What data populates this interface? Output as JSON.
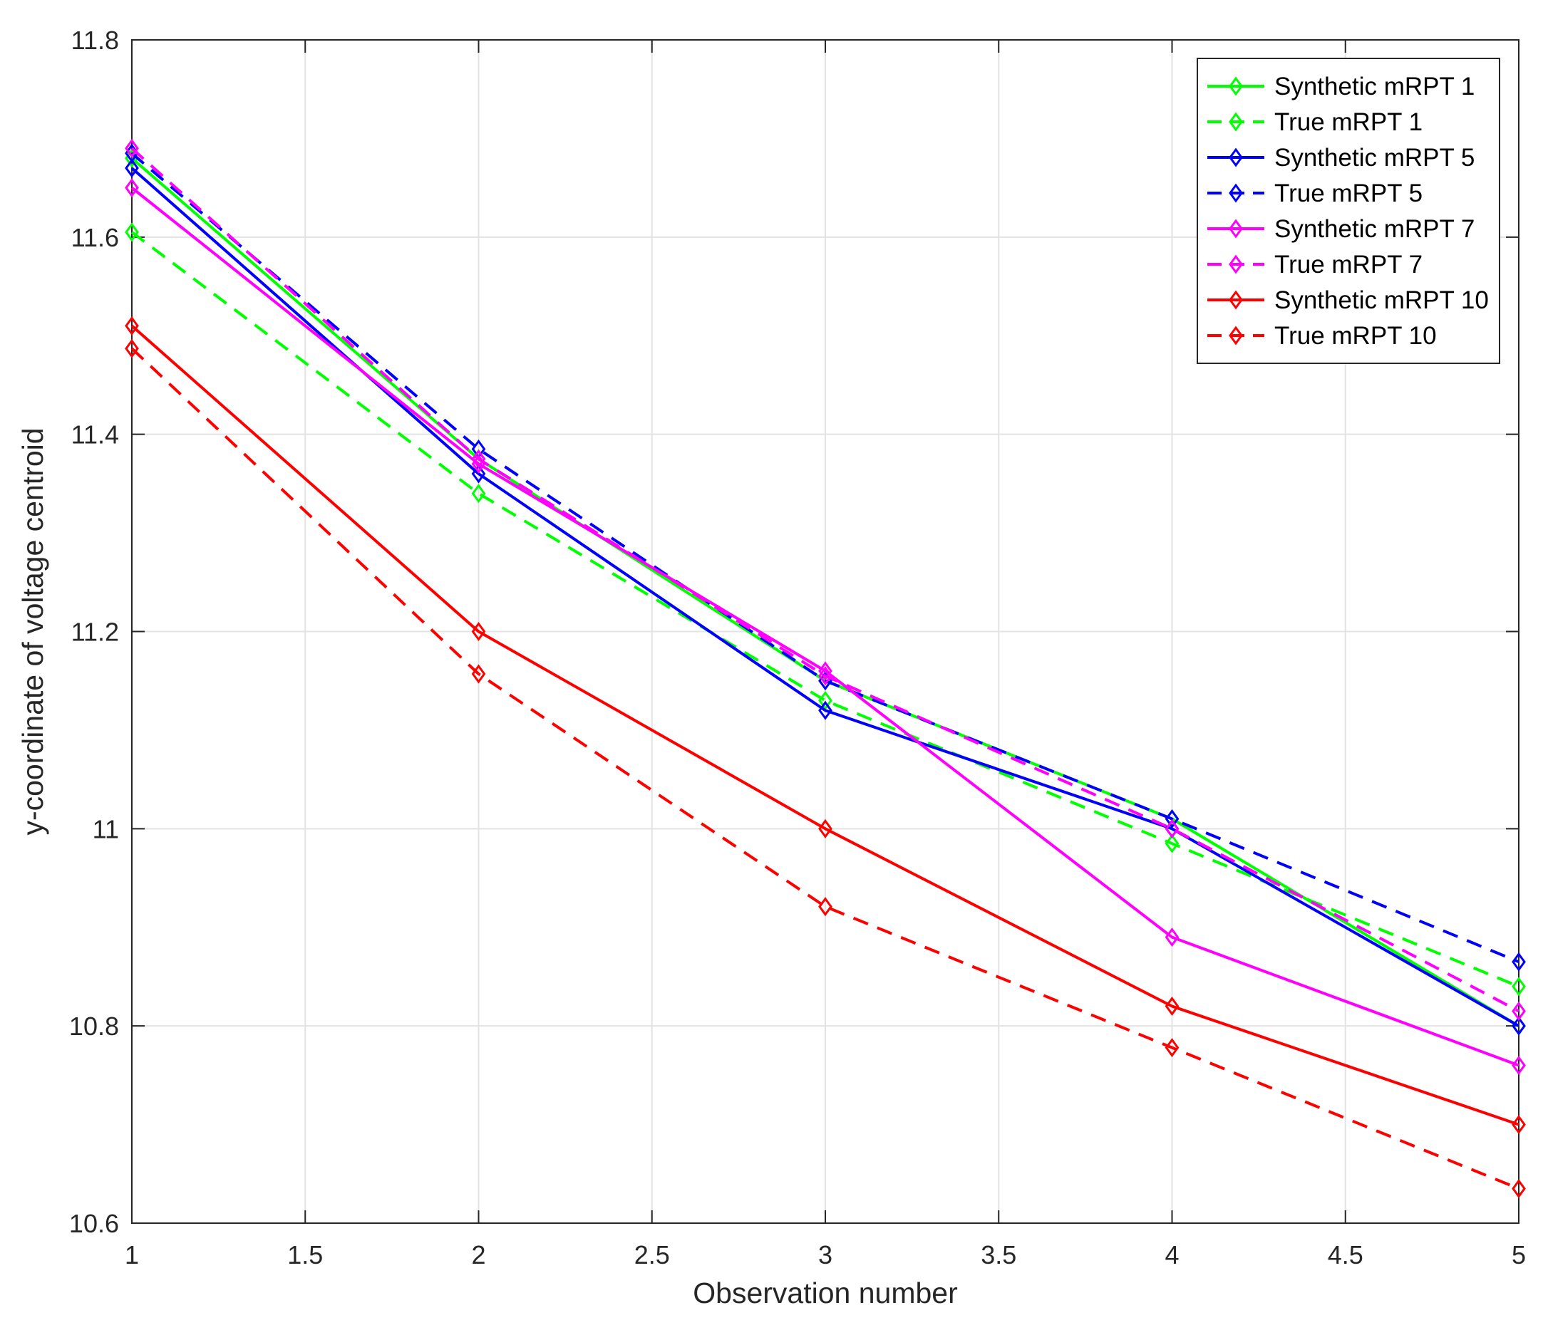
{
  "chart_data": {
    "type": "line",
    "title": "",
    "xlabel": "Observation number",
    "ylabel": "y-coordinate of voltage centroid",
    "xlim": [
      1,
      5
    ],
    "ylim": [
      10.6,
      11.8
    ],
    "xticks": [
      1,
      1.5,
      2,
      2.5,
      3,
      3.5,
      4,
      4.5,
      5
    ],
    "yticks": [
      10.6,
      10.8,
      11,
      11.2,
      11.4,
      11.6,
      11.8
    ],
    "xtick_labels": [
      "1",
      "1.5",
      "2",
      "2.5",
      "3",
      "3.5",
      "4",
      "4.5",
      "5"
    ],
    "ytick_labels": [
      "10.6",
      "10.8",
      "11",
      "11.2",
      "11.4",
      "11.6",
      "11.8"
    ],
    "grid": true,
    "legend_position": "top-right",
    "marker": "diamond",
    "x": [
      1,
      2,
      3,
      4,
      5
    ],
    "series": [
      {
        "name": "Synthetic mRPT 1",
        "color": "#00ff00",
        "style": "solid",
        "values": [
          11.68,
          11.375,
          11.15,
          11.01,
          10.8
        ]
      },
      {
        "name": "True mRPT 1",
        "color": "#00ff00",
        "style": "dashed",
        "values": [
          11.605,
          11.34,
          11.13,
          10.985,
          10.84
        ]
      },
      {
        "name": "Synthetic mRPT 5",
        "color": "#0000ff",
        "style": "solid",
        "values": [
          11.67,
          11.36,
          11.12,
          11.0,
          10.8
        ]
      },
      {
        "name": "True mRPT 5",
        "color": "#0000ff",
        "style": "dashed",
        "values": [
          11.685,
          11.385,
          11.15,
          11.01,
          10.865
        ]
      },
      {
        "name": "Synthetic mRPT 7",
        "color": "#ff00ff",
        "style": "solid",
        "values": [
          11.65,
          11.37,
          11.16,
          10.89,
          10.76
        ]
      },
      {
        "name": "True mRPT 7",
        "color": "#ff00ff",
        "style": "dashed",
        "values": [
          11.69,
          11.375,
          11.155,
          11.0,
          10.815
        ]
      },
      {
        "name": "Synthetic mRPT 10",
        "color": "#ff0000",
        "style": "solid",
        "values": [
          11.51,
          11.2,
          11.0,
          10.82,
          10.7
        ]
      },
      {
        "name": "True mRPT 10",
        "color": "#ff0000",
        "style": "dashed",
        "values": [
          11.487,
          11.157,
          10.921,
          10.778,
          10.635
        ]
      }
    ]
  }
}
